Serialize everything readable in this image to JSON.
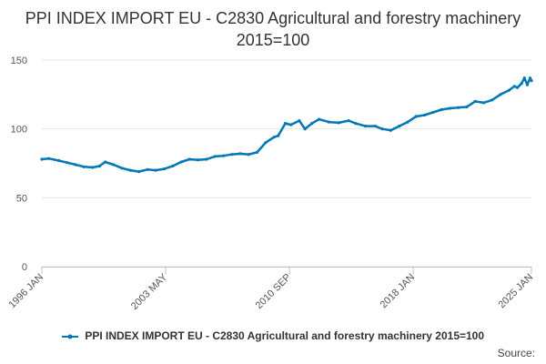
{
  "chart_data": {
    "type": "line",
    "title": "PPI INDEX IMPORT EU - C2830 Agricultural and forestry machinery 2015=100",
    "xlabel": "",
    "ylabel": "",
    "x_range": [
      "1996-01",
      "2025-01"
    ],
    "x_ticks": [
      "1996 JAN",
      "2003 MAY",
      "2010 SEP",
      "2018 JAN",
      "2025 JAN"
    ],
    "y_ticks": [
      0,
      50,
      100,
      150
    ],
    "ylim": [
      0,
      150
    ],
    "grid": true,
    "legend_position": "bottom",
    "series": [
      {
        "name": "PPI INDEX IMPORT EU - C2830 Agricultural and forestry machinery 2015=100",
        "color": "#0077b6",
        "points": [
          [
            "1996-01",
            78
          ],
          [
            "1996-06",
            78.5
          ],
          [
            "1997-01",
            77
          ],
          [
            "1997-07",
            75.5
          ],
          [
            "1998-01",
            74
          ],
          [
            "1998-07",
            72.5
          ],
          [
            "1999-01",
            72
          ],
          [
            "1999-06",
            73
          ],
          [
            "1999-10",
            76
          ],
          [
            "2000-04",
            74
          ],
          [
            "2000-10",
            71.5
          ],
          [
            "2001-04",
            70
          ],
          [
            "2001-10",
            69
          ],
          [
            "2002-04",
            70.5
          ],
          [
            "2002-10",
            70
          ],
          [
            "2003-04",
            71
          ],
          [
            "2003-10",
            73
          ],
          [
            "2004-04",
            76
          ],
          [
            "2004-10",
            78
          ],
          [
            "2005-04",
            77.5
          ],
          [
            "2005-10",
            78
          ],
          [
            "2006-04",
            80
          ],
          [
            "2006-10",
            80.5
          ],
          [
            "2007-04",
            81.5
          ],
          [
            "2007-10",
            82
          ],
          [
            "2008-04",
            81.5
          ],
          [
            "2008-10",
            83
          ],
          [
            "2009-04",
            90
          ],
          [
            "2009-10",
            94
          ],
          [
            "2010-01",
            95
          ],
          [
            "2010-06",
            104
          ],
          [
            "2010-10",
            103
          ],
          [
            "2011-04",
            106
          ],
          [
            "2011-08",
            100
          ],
          [
            "2012-01",
            104
          ],
          [
            "2012-06",
            107
          ],
          [
            "2013-01",
            105
          ],
          [
            "2013-08",
            104.5
          ],
          [
            "2014-03",
            106
          ],
          [
            "2014-08",
            104
          ],
          [
            "2015-03",
            102
          ],
          [
            "2015-10",
            102
          ],
          [
            "2016-03",
            100
          ],
          [
            "2016-09",
            99
          ],
          [
            "2017-03",
            102
          ],
          [
            "2017-09",
            105
          ],
          [
            "2018-03",
            109
          ],
          [
            "2018-09",
            110
          ],
          [
            "2019-03",
            112
          ],
          [
            "2019-09",
            114
          ],
          [
            "2020-03",
            115
          ],
          [
            "2020-09",
            115.5
          ],
          [
            "2021-03",
            116
          ],
          [
            "2021-09",
            120
          ],
          [
            "2022-03",
            119
          ],
          [
            "2022-09",
            121
          ],
          [
            "2023-03",
            125
          ],
          [
            "2023-09",
            128
          ],
          [
            "2024-01",
            131
          ],
          [
            "2024-03",
            130
          ],
          [
            "2024-06",
            133
          ],
          [
            "2024-08",
            137
          ],
          [
            "2024-10",
            132
          ],
          [
            "2024-12",
            137
          ],
          [
            "2025-01",
            135
          ]
        ]
      }
    ]
  },
  "legend": {
    "label": "PPI INDEX IMPORT EU - C2830 Agricultural and forestry machinery 2015=100"
  },
  "source_text": "Source:"
}
